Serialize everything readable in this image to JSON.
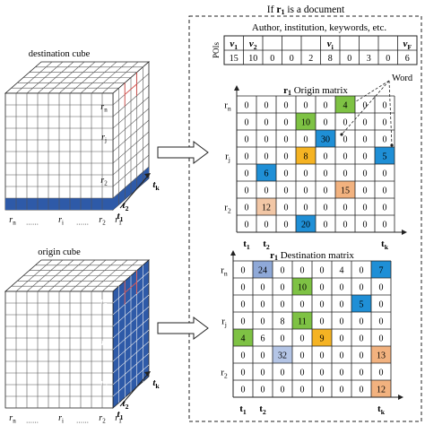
{
  "header": {
    "title_prefix": "If ",
    "title_var": "r",
    "title_sub": "1",
    "title_suffix": " is a document",
    "attributes": "Author, institution, keywords, etc."
  },
  "pois": {
    "label": "POIs",
    "headers": [
      {
        "v": "v",
        "s": "1"
      },
      {
        "v": "v",
        "s": "2"
      },
      {
        "v": "",
        "s": ""
      },
      {
        "v": "",
        "s": ""
      },
      {
        "v": "",
        "s": ""
      },
      {
        "v": "v",
        "s": "i"
      },
      {
        "v": "",
        "s": ""
      },
      {
        "v": "",
        "s": ""
      },
      {
        "v": "",
        "s": ""
      },
      {
        "v": "v",
        "s": "F"
      }
    ],
    "values": [
      "15",
      "10",
      "0",
      "0",
      "2",
      "8",
      "0",
      "3",
      "0",
      "6"
    ]
  },
  "word_label": "Word",
  "origin_matrix": {
    "title_var": "r",
    "title_sub": "1",
    "title_text": " Origin matrix",
    "rows": [
      [
        "0",
        "0",
        "0",
        "0",
        "0",
        "4",
        "0",
        "0"
      ],
      [
        "0",
        "0",
        "0",
        "10",
        "0",
        "0",
        "0",
        "0"
      ],
      [
        "0",
        "0",
        "0",
        "0",
        "30",
        "0",
        "0",
        "0"
      ],
      [
        "0",
        "0",
        "0",
        "8",
        "0",
        "0",
        "0",
        "5"
      ],
      [
        "0",
        "6",
        "0",
        "0",
        "0",
        "0",
        "0",
        "0"
      ],
      [
        "0",
        "0",
        "0",
        "0",
        "0",
        "15",
        "0",
        "0"
      ],
      [
        "0",
        "12",
        "0",
        "0",
        "0",
        "0",
        "0",
        "0"
      ],
      [
        "0",
        "0",
        "0",
        "20",
        "0",
        "0",
        "0",
        "0"
      ]
    ],
    "row_labels": [
      {
        "v": "r",
        "s": "n"
      },
      {
        "v": "",
        "s": ""
      },
      {
        "v": "",
        "s": ""
      },
      {
        "v": "r",
        "s": "j"
      },
      {
        "v": "",
        "s": ""
      },
      {
        "v": "",
        "s": ""
      },
      {
        "v": "r",
        "s": "2"
      },
      {
        "v": "",
        "s": ""
      }
    ],
    "col_labels": [
      {
        "v": "t",
        "s": "1"
      },
      {
        "v": "t",
        "s": "2"
      },
      {
        "v": "",
        "s": ""
      },
      {
        "v": "",
        "s": ""
      },
      {
        "v": "",
        "s": ""
      },
      {
        "v": "",
        "s": ""
      },
      {
        "v": "",
        "s": ""
      },
      {
        "v": "t",
        "s": "k"
      }
    ],
    "highlights": [
      {
        "r": 0,
        "c": 5,
        "color": "#7ec244"
      },
      {
        "r": 1,
        "c": 3,
        "color": "#7ec244"
      },
      {
        "r": 2,
        "c": 4,
        "color": "#1f8fd6"
      },
      {
        "r": 3,
        "c": 3,
        "color": "#f5b323"
      },
      {
        "r": 3,
        "c": 7,
        "color": "#1f8fd6"
      },
      {
        "r": 4,
        "c": 1,
        "color": "#1f8fd6"
      },
      {
        "r": 5,
        "c": 5,
        "color": "#f2b27f"
      },
      {
        "r": 6,
        "c": 1,
        "color": "#f2c7a6"
      },
      {
        "r": 7,
        "c": 3,
        "color": "#1f8fd6"
      }
    ]
  },
  "destination_matrix": {
    "title_var": "r",
    "title_sub": "1",
    "title_text": " Destination matrix",
    "rows": [
      [
        "0",
        "24",
        "0",
        "0",
        "0",
        "4",
        "0",
        "7"
      ],
      [
        "0",
        "0",
        "0",
        "10",
        "0",
        "0",
        "0",
        "0"
      ],
      [
        "0",
        "0",
        "0",
        "0",
        "0",
        "0",
        "5",
        "0"
      ],
      [
        "0",
        "0",
        "8",
        "11",
        "0",
        "0",
        "0",
        "0"
      ],
      [
        "4",
        "6",
        "0",
        "0",
        "9",
        "0",
        "0",
        "0"
      ],
      [
        "0",
        "0",
        "32",
        "0",
        "0",
        "0",
        "0",
        "13"
      ],
      [
        "0",
        "0",
        "0",
        "0",
        "0",
        "0",
        "0",
        "0"
      ],
      [
        "0",
        "0",
        "0",
        "0",
        "0",
        "0",
        "0",
        "12"
      ]
    ],
    "row_labels": [
      {
        "v": "r",
        "s": "n"
      },
      {
        "v": "",
        "s": ""
      },
      {
        "v": "",
        "s": ""
      },
      {
        "v": "r",
        "s": "j"
      },
      {
        "v": "",
        "s": ""
      },
      {
        "v": "",
        "s": ""
      },
      {
        "v": "r",
        "s": "2"
      },
      {
        "v": "",
        "s": ""
      }
    ],
    "col_labels": [
      {
        "v": "t",
        "s": "1"
      },
      {
        "v": "t",
        "s": "2"
      },
      {
        "v": "",
        "s": ""
      },
      {
        "v": "",
        "s": ""
      },
      {
        "v": "",
        "s": ""
      },
      {
        "v": "",
        "s": ""
      },
      {
        "v": "",
        "s": ""
      },
      {
        "v": "t",
        "s": "k"
      }
    ],
    "highlights": [
      {
        "r": 0,
        "c": 1,
        "color": "#8fa9d8"
      },
      {
        "r": 0,
        "c": 7,
        "color": "#1f8fd6"
      },
      {
        "r": 1,
        "c": 3,
        "color": "#7ec244"
      },
      {
        "r": 2,
        "c": 6,
        "color": "#1f8fd6"
      },
      {
        "r": 3,
        "c": 3,
        "color": "#7ec244"
      },
      {
        "r": 4,
        "c": 0,
        "color": "#7ec244"
      },
      {
        "r": 4,
        "c": 4,
        "color": "#f5b323"
      },
      {
        "r": 5,
        "c": 2,
        "color": "#b4c5e6"
      },
      {
        "r": 5,
        "c": 7,
        "color": "#f2b27f"
      },
      {
        "r": 7,
        "c": 7,
        "color": "#f2b27f"
      }
    ]
  },
  "destination_cube": {
    "title": "destination cube",
    "face_labels": [
      {
        "v": "r",
        "s": "n"
      },
      {
        "v": "r",
        "s": "j"
      },
      {
        "v": "r",
        "s": "2"
      },
      {
        "v": "r",
        "s": "1"
      }
    ],
    "bottom_labels": [
      {
        "v": "r",
        "s": "n"
      },
      {
        "v": "",
        "s": "……"
      },
      {
        "v": "r",
        "s": "i"
      },
      {
        "v": "",
        "s": "……"
      },
      {
        "v": "r",
        "s": "2"
      },
      {
        "v": "r",
        "s": "1"
      }
    ],
    "depth_labels": [
      {
        "v": "t",
        "s": "1"
      },
      {
        "v": "t",
        "s": "2"
      },
      {
        "v": "t",
        "s": "k"
      }
    ]
  },
  "origin_cube": {
    "title": "origin cube",
    "face_labels": [
      {
        "v": "r",
        "s": "n"
      },
      {
        "v": "r",
        "s": "j"
      },
      {
        "v": "r",
        "s": "2"
      },
      {
        "v": "r",
        "s": "1"
      }
    ],
    "bottom_labels": [
      {
        "v": "r",
        "s": "n"
      },
      {
        "v": "",
        "s": "……"
      },
      {
        "v": "r",
        "s": "i"
      },
      {
        "v": "",
        "s": "……"
      },
      {
        "v": "r",
        "s": "2"
      },
      {
        "v": "r",
        "s": "1"
      }
    ],
    "depth_labels": [
      {
        "v": "t",
        "s": "1"
      },
      {
        "v": "t",
        "s": "2"
      },
      {
        "v": "t",
        "s": "k"
      }
    ]
  },
  "colors": {
    "cube_blue": "#2e5aa8",
    "line": "#222222",
    "arrow_fill": "#ffffff",
    "red_outline": "#d9534f"
  }
}
